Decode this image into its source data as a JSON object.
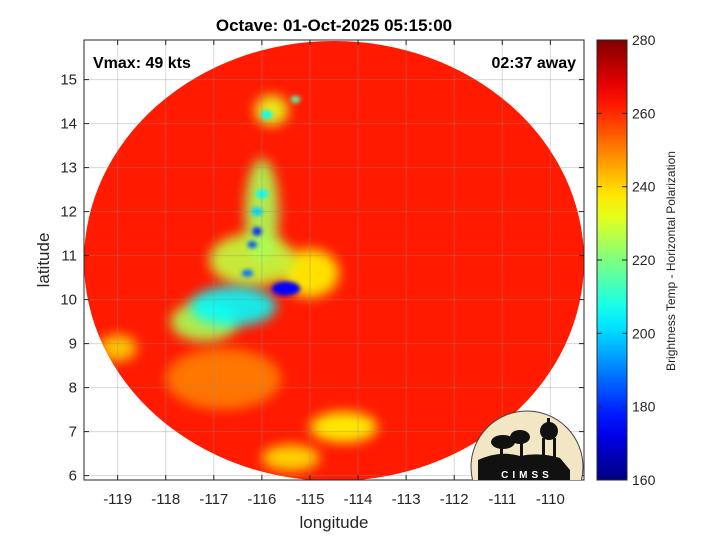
{
  "chart_data": {
    "type": "heatmap",
    "title": "Octave: 01-Oct-2025 05:15:00",
    "xlabel": "longitude",
    "ylabel": "latitude",
    "xlim": [
      -119.7,
      -109.3
    ],
    "ylim": [
      5.9,
      15.9
    ],
    "xticks": [
      -119,
      -118,
      -117,
      -116,
      -115,
      -114,
      -113,
      -112,
      -111,
      -110
    ],
    "yticks": [
      6,
      7,
      8,
      9,
      10,
      11,
      12,
      13,
      14,
      15
    ],
    "grid": true,
    "annotations": {
      "vmax": "Vmax: 49 kts",
      "away": "02:37 away"
    },
    "colorbar": {
      "label": "Brightness Temp - Horizontal Polarization",
      "range": [
        160,
        280
      ],
      "ticks": [
        160,
        180,
        200,
        220,
        240,
        260,
        280
      ],
      "colormap": "jet"
    },
    "field": {
      "background_temp": 262,
      "center": [
        -115.0,
        10.7
      ],
      "features": [
        {
          "lon": -115.5,
          "lat": 10.25,
          "temp": 175,
          "rx": 0.3,
          "ry": 0.16
        },
        {
          "lon": -116.1,
          "lat": 11.55,
          "temp": 180,
          "rx": 0.1,
          "ry": 0.1
        },
        {
          "lon": -116.2,
          "lat": 11.25,
          "temp": 185,
          "rx": 0.1,
          "ry": 0.08
        },
        {
          "lon": -116.3,
          "lat": 10.6,
          "temp": 188,
          "rx": 0.12,
          "ry": 0.08
        },
        {
          "lon": -116.6,
          "lat": 9.85,
          "temp": 205,
          "rx": 0.9,
          "ry": 0.45
        },
        {
          "lon": -116.0,
          "lat": 12.4,
          "temp": 205,
          "rx": 0.12,
          "ry": 0.1
        },
        {
          "lon": -116.1,
          "lat": 12.0,
          "temp": 200,
          "rx": 0.12,
          "ry": 0.1
        },
        {
          "lon": -115.9,
          "lat": 14.2,
          "temp": 205,
          "rx": 0.12,
          "ry": 0.1
        },
        {
          "lon": -115.3,
          "lat": 14.55,
          "temp": 215,
          "rx": 0.1,
          "ry": 0.08
        },
        {
          "lon": -117.2,
          "lat": 9.5,
          "temp": 225,
          "rx": 0.7,
          "ry": 0.45
        },
        {
          "lon": -116.2,
          "lat": 10.9,
          "temp": 228,
          "rx": 0.9,
          "ry": 0.6
        },
        {
          "lon": -116.0,
          "lat": 12.0,
          "temp": 225,
          "rx": 0.35,
          "ry": 1.2
        },
        {
          "lon": -115.0,
          "lat": 10.6,
          "temp": 236,
          "rx": 0.6,
          "ry": 0.55
        },
        {
          "lon": -115.8,
          "lat": 14.3,
          "temp": 232,
          "rx": 0.35,
          "ry": 0.35
        },
        {
          "lon": -114.3,
          "lat": 7.1,
          "temp": 235,
          "rx": 0.7,
          "ry": 0.35
        },
        {
          "lon": -119.0,
          "lat": 8.9,
          "temp": 240,
          "rx": 0.4,
          "ry": 0.3
        },
        {
          "lon": -115.4,
          "lat": 6.4,
          "temp": 238,
          "rx": 0.6,
          "ry": 0.3
        },
        {
          "lon": -116.8,
          "lat": 8.2,
          "temp": 250,
          "rx": 1.2,
          "ry": 0.7
        }
      ]
    }
  },
  "logo": {
    "text": "CIMSS"
  }
}
